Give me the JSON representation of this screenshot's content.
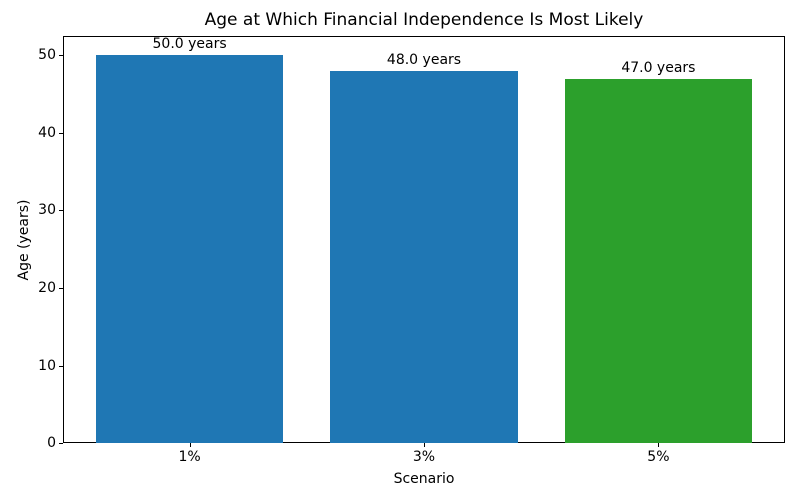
{
  "chart_data": {
    "type": "bar",
    "title": "Age at Which Financial Independence Is Most Likely",
    "xlabel": "Scenario",
    "ylabel": "Age (years)",
    "categories": [
      "1%",
      "3%",
      "5%"
    ],
    "values": [
      50.0,
      48.0,
      47.0
    ],
    "bar_labels": [
      "50.0 years",
      "48.0 years",
      "47.0 years"
    ],
    "bar_colors": [
      "#1f77b4",
      "#1f77b4",
      "#2ca02c"
    ],
    "ylim": [
      0,
      52.5
    ],
    "yticks": [
      0,
      10,
      20,
      30,
      40,
      50
    ],
    "grid": false,
    "legend": "none",
    "background_color": "#ffffff",
    "axis_color": "#000000"
  }
}
